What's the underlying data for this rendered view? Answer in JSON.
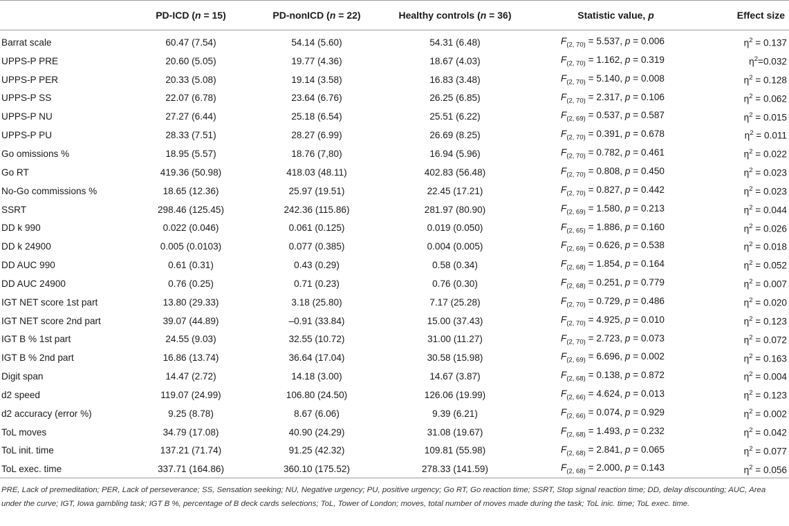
{
  "headers": {
    "variable": "",
    "group1": "PD-ICD (n = 15)",
    "group2": "PD-nonICD (n = 22)",
    "group3": "Healthy controls (n = 36)",
    "statistic": "Statistic value, p",
    "effect": "Effect size"
  },
  "rows": [
    {
      "variable": "Barrat scale",
      "g1": "60.47 (7.54)",
      "g2": "54.14 (5.60)",
      "g3": "54.31 (6.48)",
      "stat": "F(2, 70) = 5.537, p = 0.006",
      "effect": "η2 = 0.137"
    },
    {
      "variable": "UPPS-P PRE",
      "g1": "20.60 (5.05)",
      "g2": "19.77 (4.36)",
      "g3": "18.67 (4.03)",
      "stat": "F(2, 70) = 1.162, p = 0.319",
      "effect": "η2=0.032"
    },
    {
      "variable": "UPPS-P PER",
      "g1": "20.33 (5.08)",
      "g2": "19.14 (3.58)",
      "g3": "16.83 (3.48)",
      "stat": "F(2, 70) = 5.140, p = 0.008",
      "effect": "η2 = 0.128"
    },
    {
      "variable": "UPPS-P SS",
      "g1": "22.07 (6.78)",
      "g2": "23.64 (6.76)",
      "g3": "26.25 (6.85)",
      "stat": "F(2, 70) = 2.317, p = 0.106",
      "effect": "η2 = 0.062"
    },
    {
      "variable": "UPPS-P NU",
      "g1": "27.27 (6.44)",
      "g2": "25.18 (6.54)",
      "g3": "25.51 (6.22)",
      "stat": "F(2, 69) = 0.537, p = 0.587",
      "effect": "η2 = 0.015"
    },
    {
      "variable": "UPPS-P PU",
      "g1": "28.33 (7.51)",
      "g2": "28.27 (6.99)",
      "g3": "26.69 (8.25)",
      "stat": "F(2, 70) = 0.391, p = 0.678",
      "effect": "η2 = 0.011"
    },
    {
      "variable": "Go omissions %",
      "g1": "18.95 (5.57)",
      "g2": "18.76 (7,80)",
      "g3": "16.94 (5.96)",
      "stat": "F(2, 70) = 0.782, p = 0.461",
      "effect": "η2 = 0.022"
    },
    {
      "variable": "Go RT",
      "g1": "419.36 (50.98)",
      "g2": "418.03 (48.11)",
      "g3": "402.83 (56.48)",
      "stat": "F(2, 70) = 0.808, p = 0.450",
      "effect": "η2 = 0.023"
    },
    {
      "variable": "No-Go commissions %",
      "g1": "18.65 (12.36)",
      "g2": "25.97 (19.51)",
      "g3": "22.45 (17.21)",
      "stat": "F(2, 70) = 0.827, p = 0.442",
      "effect": "η2 = 0.023"
    },
    {
      "variable": "SSRT",
      "g1": "298.46 (125.45)",
      "g2": "242.36 (115.86)",
      "g3": "281.97 (80.90)",
      "stat": "F(2, 69) = 1.580, p = 0.213",
      "effect": "η2 = 0.044"
    },
    {
      "variable": "DD k 990",
      "g1": "0.022 (0.046)",
      "g2": "0.061 (0.125)",
      "g3": "0.019 (0.050)",
      "stat": "F(2, 65) = 1.886, p = 0.160",
      "effect": "η2 = 0.026"
    },
    {
      "variable": "DD k 24900",
      "g1": "0.005 (0.0103)",
      "g2": "0.077 (0.385)",
      "g3": "0.004 (0.005)",
      "stat": "F(2, 69) = 0.626, p = 0.538",
      "effect": "η2 = 0.018"
    },
    {
      "variable": "DD AUC 990",
      "g1": "0.61 (0.31)",
      "g2": "0.43 (0.29)",
      "g3": "0.58 (0.34)",
      "stat": "F(2, 68) = 1.854, p = 0.164",
      "effect": "η2 = 0.052"
    },
    {
      "variable": "DD AUC 24900",
      "g1": "0.76 (0.25)",
      "g2": "0.71 (0.23)",
      "g3": "0.76 (0.30)",
      "stat": "F(2, 68) = 0.251, p = 0.779",
      "effect": "η2 = 0.007"
    },
    {
      "variable": "IGT NET score 1st part",
      "g1": "13.80 (29.33)",
      "g2": "3.18 (25.80)",
      "g3": "7.17 (25.28)",
      "stat": "F(2, 70) = 0.729, p = 0.486",
      "effect": "η2 = 0.020"
    },
    {
      "variable": "IGT NET score 2nd part",
      "g1": "39.07 (44.89)",
      "g2": "–0.91 (33.84)",
      "g3": "15.00 (37.43)",
      "stat": "F(2, 70) = 4.925, p = 0.010",
      "effect": "η2 = 0.123"
    },
    {
      "variable": "IGT B % 1st part",
      "g1": "24.55 (9.03)",
      "g2": "32.55 (10.72)",
      "g3": "31.00 (11.27)",
      "stat": "F(2, 70) = 2.723, p = 0.073",
      "effect": "η2 = 0.072"
    },
    {
      "variable": "IGT B % 2nd part",
      "g1": "16.86 (13.74)",
      "g2": "36.64 (17.04)",
      "g3": "30.58 (15.98)",
      "stat": "F(2, 69) = 6.696, p = 0.002",
      "effect": "η2 = 0.163"
    },
    {
      "variable": "Digit span",
      "g1": "14.47 (2.72)",
      "g2": "14.18 (3.00)",
      "g3": "14.67 (3.87)",
      "stat": "F(2, 68) = 0.138, p = 0.872",
      "effect": "η2 = 0.004"
    },
    {
      "variable": "d2 speed",
      "g1": "119.07 (24.99)",
      "g2": "106.80 (24.50)",
      "g3": "126.06 (19.99)",
      "stat": "F(2, 66) = 4.624, p = 0.013",
      "effect": "η2 = 0.123"
    },
    {
      "variable": "d2 accuracy (error %)",
      "g1": "9.25 (8.78)",
      "g2": "8.67 (6.06)",
      "g3": "9.39 (6.21)",
      "stat": "F(2, 66) = 0.074, p = 0.929",
      "effect": "η2 = 0.002"
    },
    {
      "variable": "ToL moves",
      "g1": "34.79 (17.08)",
      "g2": "40.90 (24.29)",
      "g3": "31.08 (19.67)",
      "stat": "F(2, 68) = 1.493, p = 0.232",
      "effect": "η2 = 0.042"
    },
    {
      "variable": "ToL init. time",
      "g1": "137.21 (71.74)",
      "g2": "91.25 (42.32)",
      "g3": "109.81 (55.98)",
      "stat": "F(2, 68) = 2.841, p = 0.065",
      "effect": "η2 = 0.077"
    },
    {
      "variable": "ToL exec. time",
      "g1": "337.71 (164.86)",
      "g2": "360.10 (175.52)",
      "g3": "278.33 (141.59)",
      "stat": "F(2, 68) = 2.000, p = 0.143",
      "effect": "η2 = 0.056"
    }
  ],
  "footnote": "PRE, Lack of premeditation; PER, Lack of perseverance; SS, Sensation seeking; NU, Negative urgency; PU, positive urgency; Go RT, Go reaction time; SSRT, Stop signal reaction time; DD, delay discounting; AUC, Area under the curve; IGT, Iowa gambling task; IGT B %, percentage of B deck cards selections; ToL, Tower of London; moves, total number of moves made during the task; ToL inic. time; ToL exec. time."
}
